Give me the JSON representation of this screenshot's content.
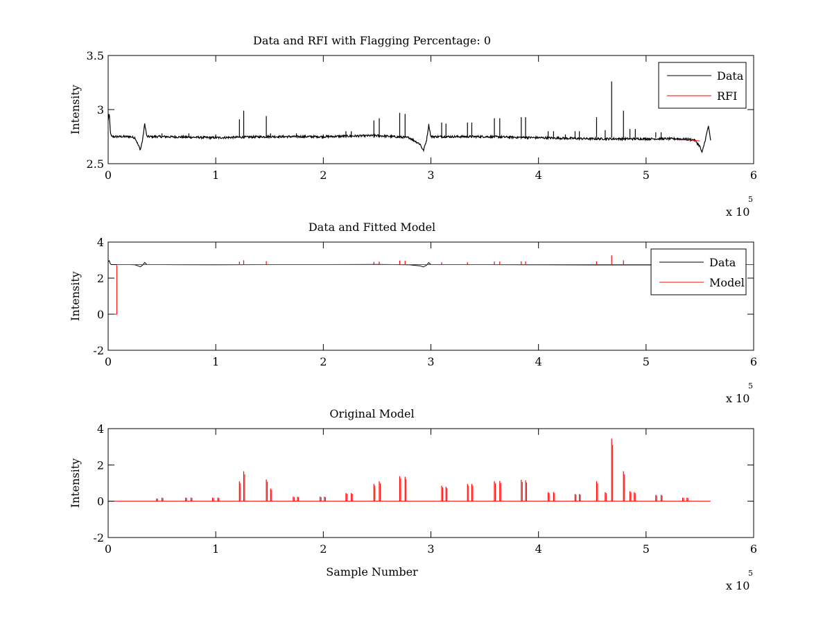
{
  "figure": {
    "background": "#ffffff"
  },
  "colors": {
    "data": "#000000",
    "rfi": "#ff0000",
    "model": "#ff0000",
    "axis": "#000000"
  },
  "chart_data": [
    {
      "type": "line",
      "title": "Data and RFI with Flagging Percentage: 0",
      "xlabel": "",
      "ylabel": "Intensity",
      "xlim": [
        0,
        6
      ],
      "ylim": [
        2.5,
        3.5
      ],
      "xticks": [
        "0",
        "1",
        "2",
        "3",
        "4",
        "5",
        "6"
      ],
      "yticks": [
        "2.5",
        "3",
        "3.5"
      ],
      "xticks_values": [
        0,
        1,
        2,
        3,
        4,
        5,
        6
      ],
      "yticks_values": [
        2.5,
        3,
        3.5
      ],
      "x_exponent_label": "x 10",
      "x_exponent_power": "5",
      "grid": false,
      "legend": {
        "position": "top-right",
        "entries": [
          "Data",
          "RFI"
        ]
      },
      "baseline": 2.74,
      "series": [
        {
          "name": "Data",
          "color": "#000000",
          "x": [
            0,
            0.01,
            0.02,
            0.03,
            0.05,
            0.1,
            0.2,
            0.25,
            0.28,
            0.3,
            0.32,
            0.34,
            0.36,
            0.5,
            1.0,
            1.5,
            2.0,
            2.5,
            2.8,
            2.9,
            2.93,
            2.96,
            2.98,
            3.0,
            3.5,
            4.0,
            4.5,
            5.0,
            5.3,
            5.45,
            5.5,
            5.52,
            5.55,
            5.58,
            5.6
          ],
          "y": [
            2.9,
            2.97,
            2.8,
            2.75,
            2.75,
            2.75,
            2.75,
            2.74,
            2.67,
            2.63,
            2.72,
            2.87,
            2.75,
            2.75,
            2.74,
            2.75,
            2.75,
            2.76,
            2.74,
            2.68,
            2.62,
            2.72,
            2.86,
            2.75,
            2.75,
            2.74,
            2.73,
            2.73,
            2.73,
            2.72,
            2.66,
            2.6,
            2.72,
            2.85,
            2.71
          ],
          "noise_amplitude": 0.01
        },
        {
          "name": "RFI",
          "color": "#ff0000",
          "x": [
            5.3,
            5.4,
            5.5
          ],
          "y": [
            2.72,
            2.72,
            2.71
          ]
        }
      ],
      "spikes": [
        {
          "x": 1.22,
          "y": 2.91
        },
        {
          "x": 1.26,
          "y": 2.99
        },
        {
          "x": 1.47,
          "y": 2.94
        },
        {
          "x": 1.51,
          "y": 2.78
        },
        {
          "x": 2.21,
          "y": 2.8
        },
        {
          "x": 2.26,
          "y": 2.8
        },
        {
          "x": 2.47,
          "y": 2.9
        },
        {
          "x": 2.52,
          "y": 2.92
        },
        {
          "x": 2.71,
          "y": 2.97
        },
        {
          "x": 2.76,
          "y": 2.96
        },
        {
          "x": 3.1,
          "y": 2.88
        },
        {
          "x": 3.14,
          "y": 2.87
        },
        {
          "x": 3.34,
          "y": 2.88
        },
        {
          "x": 3.38,
          "y": 2.88
        },
        {
          "x": 3.59,
          "y": 2.92
        },
        {
          "x": 3.64,
          "y": 2.92
        },
        {
          "x": 3.84,
          "y": 2.93
        },
        {
          "x": 3.88,
          "y": 2.93
        },
        {
          "x": 4.09,
          "y": 2.8
        },
        {
          "x": 4.14,
          "y": 2.8
        },
        {
          "x": 4.34,
          "y": 2.8
        },
        {
          "x": 4.38,
          "y": 2.8
        },
        {
          "x": 4.54,
          "y": 2.93
        },
        {
          "x": 4.62,
          "y": 2.81
        },
        {
          "x": 4.68,
          "y": 3.26
        },
        {
          "x": 4.79,
          "y": 2.99
        },
        {
          "x": 4.85,
          "y": 2.82
        },
        {
          "x": 4.9,
          "y": 2.82
        },
        {
          "x": 5.09,
          "y": 2.79
        },
        {
          "x": 5.14,
          "y": 2.79
        },
        {
          "x": 0.5,
          "y": 2.78
        },
        {
          "x": 0.75,
          "y": 2.78
        },
        {
          "x": 1.0,
          "y": 2.77
        },
        {
          "x": 1.75,
          "y": 2.78
        },
        {
          "x": 2.0,
          "y": 2.77
        },
        {
          "x": 4.25,
          "y": 2.77
        }
      ]
    },
    {
      "type": "line",
      "title": "Data and Fitted Model",
      "xlabel": "",
      "ylabel": "Intensity",
      "xlim": [
        0,
        6
      ],
      "ylim": [
        -2,
        4
      ],
      "xticks": [
        "0",
        "1",
        "2",
        "3",
        "4",
        "5",
        "6"
      ],
      "yticks": [
        "-2",
        "0",
        "2",
        "4"
      ],
      "xticks_values": [
        0,
        1,
        2,
        3,
        4,
        5,
        6
      ],
      "yticks_values": [
        -2,
        0,
        2,
        4
      ],
      "x_exponent_label": "x 10",
      "x_exponent_power": "5",
      "grid": false,
      "legend": {
        "position": "top-right",
        "entries": [
          "Data",
          "Model"
        ]
      },
      "baseline": 2.74,
      "series": [
        {
          "name": "Data",
          "color": "#000000",
          "x": [
            0,
            0.01,
            0.02,
            0.03,
            0.05,
            0.1,
            0.2,
            0.25,
            0.28,
            0.3,
            0.32,
            0.34,
            0.36,
            0.5,
            1.0,
            1.5,
            2.0,
            2.5,
            2.8,
            2.9,
            2.93,
            2.96,
            2.98,
            3.0,
            3.5,
            4.0,
            4.5,
            5.0,
            5.5,
            5.6
          ],
          "y": [
            2.9,
            2.97,
            2.8,
            2.75,
            2.75,
            2.75,
            2.75,
            2.74,
            2.67,
            2.63,
            2.72,
            2.87,
            2.75,
            2.75,
            2.74,
            2.75,
            2.75,
            2.76,
            2.74,
            2.68,
            2.62,
            2.72,
            2.86,
            2.75,
            2.75,
            2.74,
            2.73,
            2.73,
            2.72,
            2.71
          ]
        },
        {
          "name": "Model",
          "color": "#ff0000",
          "x": [
            0,
            0.08,
            0.08,
            6.0
          ],
          "y": [
            0,
            0,
            2.75,
            2.75
          ]
        }
      ],
      "spikes": [
        {
          "x": 1.22,
          "y": 2.91
        },
        {
          "x": 1.26,
          "y": 2.99
        },
        {
          "x": 1.47,
          "y": 2.94
        },
        {
          "x": 2.47,
          "y": 2.9
        },
        {
          "x": 2.52,
          "y": 2.92
        },
        {
          "x": 2.71,
          "y": 2.97
        },
        {
          "x": 2.76,
          "y": 2.96
        },
        {
          "x": 3.1,
          "y": 2.88
        },
        {
          "x": 3.34,
          "y": 2.88
        },
        {
          "x": 3.59,
          "y": 2.92
        },
        {
          "x": 3.64,
          "y": 2.92
        },
        {
          "x": 3.84,
          "y": 2.93
        },
        {
          "x": 3.88,
          "y": 2.93
        },
        {
          "x": 4.54,
          "y": 2.93
        },
        {
          "x": 4.68,
          "y": 3.26
        },
        {
          "x": 4.79,
          "y": 2.99
        }
      ]
    },
    {
      "type": "line",
      "title": "Original Model",
      "xlabel": "Sample Number",
      "ylabel": "Intensity",
      "xlim": [
        0,
        6
      ],
      "ylim": [
        -2,
        4
      ],
      "xticks": [
        "0",
        "1",
        "2",
        "3",
        "4",
        "5",
        "6"
      ],
      "yticks": [
        "-2",
        "0",
        "2",
        "4"
      ],
      "xticks_values": [
        0,
        1,
        2,
        3,
        4,
        5,
        6
      ],
      "yticks_values": [
        -2,
        0,
        2,
        4
      ],
      "x_exponent_label": "x 10",
      "x_exponent_power": "5",
      "grid": false,
      "series": [
        {
          "name": "",
          "color": "#ff0000",
          "x": [
            0.0,
            5.6
          ],
          "y": [
            0,
            0
          ]
        }
      ],
      "spikes": [
        {
          "x": 0.45,
          "y": 0.15
        },
        {
          "x": 0.5,
          "y": 0.2
        },
        {
          "x": 0.72,
          "y": 0.2
        },
        {
          "x": 0.77,
          "y": 0.2
        },
        {
          "x": 0.97,
          "y": 0.2
        },
        {
          "x": 1.02,
          "y": 0.2
        },
        {
          "x": 1.22,
          "y": 1.1
        },
        {
          "x": 1.26,
          "y": 1.65
        },
        {
          "x": 1.47,
          "y": 1.2
        },
        {
          "x": 1.51,
          "y": 0.7
        },
        {
          "x": 1.72,
          "y": 0.25
        },
        {
          "x": 1.76,
          "y": 0.25
        },
        {
          "x": 1.97,
          "y": 0.25
        },
        {
          "x": 2.01,
          "y": 0.25
        },
        {
          "x": 2.21,
          "y": 0.45
        },
        {
          "x": 2.26,
          "y": 0.45
        },
        {
          "x": 2.47,
          "y": 0.95
        },
        {
          "x": 2.52,
          "y": 1.1
        },
        {
          "x": 2.71,
          "y": 1.38
        },
        {
          "x": 2.76,
          "y": 1.35
        },
        {
          "x": 3.1,
          "y": 0.85
        },
        {
          "x": 3.14,
          "y": 0.8
        },
        {
          "x": 3.34,
          "y": 0.95
        },
        {
          "x": 3.38,
          "y": 0.95
        },
        {
          "x": 3.59,
          "y": 1.1
        },
        {
          "x": 3.64,
          "y": 1.12
        },
        {
          "x": 3.84,
          "y": 1.18
        },
        {
          "x": 3.88,
          "y": 1.15
        },
        {
          "x": 4.09,
          "y": 0.5
        },
        {
          "x": 4.14,
          "y": 0.5
        },
        {
          "x": 4.34,
          "y": 0.4
        },
        {
          "x": 4.38,
          "y": 0.4
        },
        {
          "x": 4.54,
          "y": 1.1
        },
        {
          "x": 4.62,
          "y": 0.5
        },
        {
          "x": 4.68,
          "y": 3.45
        },
        {
          "x": 4.79,
          "y": 1.65
        },
        {
          "x": 4.85,
          "y": 0.55
        },
        {
          "x": 4.89,
          "y": 0.5
        },
        {
          "x": 5.09,
          "y": 0.35
        },
        {
          "x": 5.14,
          "y": 0.35
        },
        {
          "x": 5.34,
          "y": 0.2
        },
        {
          "x": 5.38,
          "y": 0.2
        }
      ]
    }
  ]
}
